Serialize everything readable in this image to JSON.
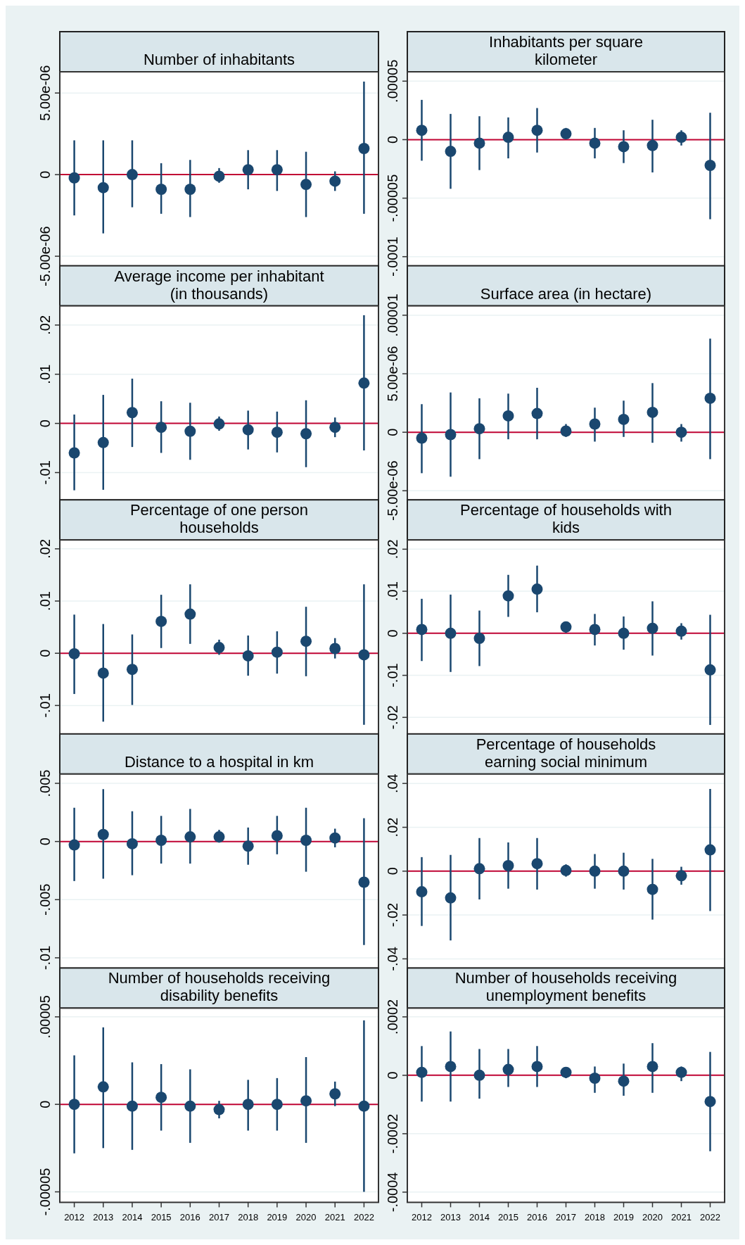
{
  "chart_data": [
    {
      "type": "scatter",
      "title": "Number of inhabitants",
      "categories": [
        null,
        null,
        null,
        null,
        null,
        null,
        null,
        null,
        null,
        null,
        null
      ],
      "values": [
        -2e-07,
        -8e-07,
        0,
        -9e-07,
        -9e-07,
        -1e-07,
        3e-07,
        3e-07,
        -6e-07,
        -4e-07,
        1.6e-06
      ],
      "errors": [
        [
          -2.5e-06,
          2.1e-06
        ],
        [
          -3.6e-06,
          2.1e-06
        ],
        [
          -2e-06,
          2.1e-06
        ],
        [
          -2.4e-06,
          7e-07
        ],
        [
          -2.6e-06,
          9e-07
        ],
        [
          -5e-07,
          4e-07
        ],
        [
          -9e-07,
          1.5e-06
        ],
        [
          -1e-06,
          1.5e-06
        ],
        [
          -2.6e-06,
          1.4e-06
        ],
        [
          -1e-06,
          2e-07
        ],
        [
          -2.4e-06,
          5.7e-06
        ]
      ],
      "color": "#1a476f",
      "marker": "circle",
      "grid": "y",
      "ylim": [
        -5.6e-06,
        6.3e-06
      ],
      "yticks": [
        {
          "value": -5e-06,
          "label": "-5.00e-06"
        },
        {
          "value": 0,
          "label": "0"
        },
        {
          "value": 5e-06,
          "label": "5.00e-06"
        }
      ],
      "ref_lines": [
        {
          "axis": "y",
          "value": 0,
          "color": "#c10534"
        }
      ],
      "tick_labels": "y"
    },
    {
      "type": "scatter",
      "title": "Inhabitants per square kilometer",
      "categories": [
        null,
        null,
        null,
        null,
        null,
        null,
        null,
        null,
        null,
        null,
        null
      ],
      "values": [
        8e-06,
        -1e-05,
        -3e-06,
        2e-06,
        8e-06,
        5e-06,
        -3e-06,
        -6e-06,
        -5e-06,
        2e-06,
        -2.2e-05
      ],
      "errors": [
        [
          -1.8e-05,
          3.4e-05
        ],
        [
          -4.2e-05,
          2.2e-05
        ],
        [
          -2.6e-05,
          2e-05
        ],
        [
          -1.6e-05,
          1.9e-05
        ],
        [
          -1.1e-05,
          2.7e-05
        ],
        [
          1e-06,
          1e-05
        ],
        [
          -1.6e-05,
          1e-05
        ],
        [
          -2e-05,
          8e-06
        ],
        [
          -2.8e-05,
          1.7e-05
        ],
        [
          -5e-06,
          8e-06
        ],
        [
          -6.8e-05,
          2.3e-05
        ]
      ],
      "color": "#1a476f",
      "marker": "circle",
      "grid": "y",
      "ylim": [
        -0.000108,
        5.8e-05
      ],
      "yticks": [
        {
          "value": -0.0001,
          "label": "-.0001"
        },
        {
          "value": -5e-05,
          "label": "-.00005"
        },
        {
          "value": 0,
          "label": "0"
        },
        {
          "value": 5e-05,
          "label": ".00005"
        }
      ],
      "ref_lines": [
        {
          "axis": "y",
          "value": 0,
          "color": "#c10534"
        }
      ],
      "tick_labels": "y"
    },
    {
      "type": "scatter",
      "title": "Average income per inhabitant (in thousands)",
      "categories": [
        null,
        null,
        null,
        null,
        null,
        null,
        null,
        null,
        null,
        null,
        null
      ],
      "values": [
        -0.006,
        -0.0039,
        0.0022,
        -0.0008,
        -0.0016,
        -0.0001,
        -0.0013,
        -0.0018,
        -0.0021,
        -0.0008,
        0.0082
      ],
      "errors": [
        [
          -0.0136,
          0.0018
        ],
        [
          -0.0135,
          0.0058
        ],
        [
          -0.0048,
          0.0091
        ],
        [
          -0.006,
          0.0045
        ],
        [
          -0.0074,
          0.0042
        ],
        [
          -0.0015,
          0.0014
        ],
        [
          -0.0053,
          0.0026
        ],
        [
          -0.0059,
          0.0024
        ],
        [
          -0.0089,
          0.0047
        ],
        [
          -0.0028,
          0.0012
        ],
        [
          -0.0055,
          0.022
        ]
      ],
      "color": "#1a476f",
      "marker": "circle",
      "grid": "y",
      "ylim": [
        -0.0156,
        0.0239
      ],
      "yticks": [
        {
          "value": -0.01,
          "label": "-.01"
        },
        {
          "value": 0,
          "label": "0"
        },
        {
          "value": 0.01,
          "label": ".01"
        },
        {
          "value": 0.02,
          "label": ".02"
        }
      ],
      "ref_lines": [
        {
          "axis": "y",
          "value": 0,
          "color": "#c10534"
        }
      ],
      "tick_labels": "y"
    },
    {
      "type": "scatter",
      "title": "Surface area (in hectare)",
      "categories": [
        null,
        null,
        null,
        null,
        null,
        null,
        null,
        null,
        null,
        null,
        null
      ],
      "values": [
        -5e-07,
        -2e-07,
        3e-07,
        1.4e-06,
        1.6e-06,
        1e-07,
        7e-07,
        1.1e-06,
        1.7e-06,
        0,
        2.9e-06
      ],
      "errors": [
        [
          -3.5e-06,
          2.4e-06
        ],
        [
          -3.8e-06,
          3.4e-06
        ],
        [
          -2.3e-06,
          2.9e-06
        ],
        [
          -6e-07,
          3.3e-06
        ],
        [
          -6e-07,
          3.8e-06
        ],
        [
          -4e-07,
          7e-07
        ],
        [
          -8e-07,
          2.1e-06
        ],
        [
          -4e-07,
          2.7e-06
        ],
        [
          -9e-07,
          4.2e-06
        ],
        [
          -8e-07,
          7e-07
        ],
        [
          -2.3e-06,
          8e-06
        ]
      ],
      "color": "#1a476f",
      "marker": "circle",
      "grid": "y",
      "ylim": [
        -5.8e-06,
        1.08e-05
      ],
      "yticks": [
        {
          "value": -5e-06,
          "label": "-5.00e-06"
        },
        {
          "value": 0,
          "label": "0"
        },
        {
          "value": 5e-06,
          "label": "5.00e-06"
        },
        {
          "value": 1e-05,
          "label": ".00001"
        }
      ],
      "ref_lines": [
        {
          "axis": "y",
          "value": 0,
          "color": "#c10534"
        }
      ],
      "tick_labels": "y"
    },
    {
      "type": "scatter",
      "title": "Percentage of one person households",
      "categories": [
        null,
        null,
        null,
        null,
        null,
        null,
        null,
        null,
        null,
        null,
        null
      ],
      "values": [
        -0.0001,
        -0.0038,
        -0.0031,
        0.0061,
        0.0075,
        0.0011,
        -0.0005,
        0.0002,
        0.0023,
        0.0009,
        -0.0003
      ],
      "errors": [
        [
          -0.0078,
          0.0074
        ],
        [
          -0.0131,
          0.0056
        ],
        [
          -0.0099,
          0.0036
        ],
        [
          0.001,
          0.0112
        ],
        [
          0.0018,
          0.0132
        ],
        [
          -0.0003,
          0.0026
        ],
        [
          -0.0043,
          0.0034
        ],
        [
          -0.0039,
          0.0042
        ],
        [
          -0.0044,
          0.0089
        ],
        [
          -0.001,
          0.0029
        ],
        [
          -0.0137,
          0.0132
        ]
      ],
      "color": "#1a476f",
      "marker": "circle",
      "grid": "y",
      "ylim": [
        -0.0155,
        0.0217
      ],
      "yticks": [
        {
          "value": -0.01,
          "label": "-.01"
        },
        {
          "value": 0,
          "label": "0"
        },
        {
          "value": 0.01,
          "label": ".01"
        },
        {
          "value": 0.02,
          "label": ".02"
        }
      ],
      "ref_lines": [
        {
          "axis": "y",
          "value": 0,
          "color": "#c10534"
        }
      ],
      "tick_labels": "y"
    },
    {
      "type": "scatter",
      "title": "Percentage of households with kids",
      "categories": [
        null,
        null,
        null,
        null,
        null,
        null,
        null,
        null,
        null,
        null,
        null
      ],
      "values": [
        0.0009,
        0,
        -0.0012,
        0.0089,
        0.0105,
        0.0015,
        0.0009,
        0,
        0.0012,
        0.0005,
        -0.0087
      ],
      "errors": [
        [
          -0.0066,
          0.0082
        ],
        [
          -0.0092,
          0.0092
        ],
        [
          -0.0078,
          0.0054
        ],
        [
          0.0039,
          0.0139
        ],
        [
          0.005,
          0.0161
        ],
        [
          0.0001,
          0.0028
        ],
        [
          -0.0029,
          0.0046
        ],
        [
          -0.0039,
          0.004
        ],
        [
          -0.0053,
          0.0076
        ],
        [
          -0.0015,
          0.0024
        ],
        [
          -0.0218,
          0.0044
        ]
      ],
      "color": "#1a476f",
      "marker": "circle",
      "grid": "y",
      "ylim": [
        -0.024,
        0.0222
      ],
      "yticks": [
        {
          "value": -0.02,
          "label": "-.02"
        },
        {
          "value": -0.01,
          "label": "-.01"
        },
        {
          "value": 0,
          "label": "0"
        },
        {
          "value": 0.01,
          "label": ".01"
        },
        {
          "value": 0.02,
          "label": ".02"
        }
      ],
      "ref_lines": [
        {
          "axis": "y",
          "value": 0,
          "color": "#c10534"
        }
      ],
      "tick_labels": "y"
    },
    {
      "type": "scatter",
      "title": "Distance to a hospital in km",
      "categories": [
        null,
        null,
        null,
        null,
        null,
        null,
        null,
        null,
        null,
        null,
        null
      ],
      "values": [
        -0.0003,
        0.0006,
        -0.0002,
        0.0001,
        0.0004,
        0.0004,
        -0.0004,
        0.0005,
        0.0001,
        0.0003,
        -0.0035
      ],
      "errors": [
        [
          -0.0034,
          0.0029
        ],
        [
          -0.0032,
          0.0045
        ],
        [
          -0.0029,
          0.0026
        ],
        [
          -0.0019,
          0.0022
        ],
        [
          -0.0019,
          0.0028
        ],
        [
          -0.0001,
          0.001
        ],
        [
          -0.002,
          0.0012
        ],
        [
          -0.0011,
          0.0022
        ],
        [
          -0.0026,
          0.0029
        ],
        [
          -0.0005,
          0.0011
        ],
        [
          -0.0089,
          0.002
        ]
      ],
      "color": "#1a476f",
      "marker": "circle",
      "grid": "y",
      "ylim": [
        -0.0109,
        0.0058
      ],
      "yticks": [
        {
          "value": -0.01,
          "label": "-.01"
        },
        {
          "value": -0.005,
          "label": "-.005"
        },
        {
          "value": 0,
          "label": "0"
        },
        {
          "value": 0.005,
          "label": ".005"
        }
      ],
      "ref_lines": [
        {
          "axis": "y",
          "value": 0,
          "color": "#c10534"
        }
      ],
      "tick_labels": "y"
    },
    {
      "type": "scatter",
      "title": "Percentage of households earning social minimum",
      "categories": [
        null,
        null,
        null,
        null,
        null,
        null,
        null,
        null,
        null,
        null,
        null
      ],
      "values": [
        -0.0094,
        -0.0122,
        0.0011,
        0.0025,
        0.0034,
        0.0003,
        0,
        0,
        -0.0083,
        -0.0021,
        0.0097
      ],
      "errors": [
        [
          -0.025,
          0.0064
        ],
        [
          -0.0316,
          0.0074
        ],
        [
          -0.0129,
          0.0151
        ],
        [
          -0.008,
          0.0131
        ],
        [
          -0.0084,
          0.0151
        ],
        [
          -0.0025,
          0.0031
        ],
        [
          -0.008,
          0.0078
        ],
        [
          -0.0084,
          0.0084
        ],
        [
          -0.0221,
          0.0056
        ],
        [
          -0.0062,
          0.002
        ],
        [
          -0.0182,
          0.0375
        ]
      ],
      "color": "#1a476f",
      "marker": "circle",
      "grid": "y",
      "ylim": [
        -0.0443,
        0.0443
      ],
      "yticks": [
        {
          "value": -0.04,
          "label": "-.04"
        },
        {
          "value": -0.02,
          "label": "-.02"
        },
        {
          "value": 0,
          "label": "0"
        },
        {
          "value": 0.02,
          "label": ".02"
        },
        {
          "value": 0.04,
          "label": ".04"
        }
      ],
      "ref_lines": [
        {
          "axis": "y",
          "value": 0,
          "color": "#c10534"
        }
      ],
      "tick_labels": "y"
    },
    {
      "type": "scatter",
      "title": "Number of households receiving disability benefits",
      "categories": [
        "2012",
        "2013",
        "2014",
        "2015",
        "2016",
        "2017",
        "2018",
        "2019",
        "2020",
        "2021",
        "2022"
      ],
      "values": [
        0,
        1e-05,
        -1e-06,
        4e-06,
        -1e-06,
        -3e-06,
        0,
        0,
        2e-06,
        6e-06,
        -1e-06
      ],
      "errors": [
        [
          -2.8e-05,
          2.8e-05
        ],
        [
          -2.5e-05,
          4.4e-05
        ],
        [
          -2.6e-05,
          2.4e-05
        ],
        [
          -1.5e-05,
          2.3e-05
        ],
        [
          -2.2e-05,
          2e-05
        ],
        [
          -8e-06,
          2e-06
        ],
        [
          -1.5e-05,
          1.4e-05
        ],
        [
          -1.5e-05,
          1.5e-05
        ],
        [
          -2.2e-05,
          2.7e-05
        ],
        [
          -1e-06,
          1.3e-05
        ],
        [
          -5e-05,
          4.8e-05
        ]
      ],
      "color": "#1a476f",
      "marker": "circle",
      "grid": "y",
      "ylim": [
        -5.6e-05,
        5.5e-05
      ],
      "yticks": [
        {
          "value": -5e-05,
          "label": "-.00005"
        },
        {
          "value": 0,
          "label": "0"
        },
        {
          "value": 5e-05,
          "label": ".00005"
        }
      ],
      "ref_lines": [
        {
          "axis": "y",
          "value": 0,
          "color": "#c10534"
        }
      ]
    },
    {
      "type": "scatter",
      "title": "Number of households receiving unemployment benefits",
      "categories": [
        "2012",
        "2013",
        "2014",
        "2015",
        "2016",
        "2017",
        "2018",
        "2019",
        "2020",
        "2021",
        "2022"
      ],
      "values": [
        1e-05,
        3e-05,
        0,
        2e-05,
        3e-05,
        1e-05,
        -1e-05,
        -2e-05,
        3e-05,
        1e-05,
        -9e-05
      ],
      "errors": [
        [
          -9e-05,
          0.0001
        ],
        [
          -9e-05,
          0.00015
        ],
        [
          -8e-05,
          9e-05
        ],
        [
          -4e-05,
          9e-05
        ],
        [
          -4e-05,
          0.0001
        ],
        [
          -1e-05,
          2e-05
        ],
        [
          -6e-05,
          3e-05
        ],
        [
          -7e-05,
          4e-05
        ],
        [
          -6e-05,
          0.00011
        ],
        [
          -2e-05,
          3e-05
        ],
        [
          -0.00026,
          8e-05
        ]
      ],
      "color": "#1a476f",
      "marker": "circle",
      "grid": "y",
      "ylim": [
        -0.000435,
        0.00023
      ],
      "yticks": [
        {
          "value": -0.0004,
          "label": "-.0004"
        },
        {
          "value": -0.0002,
          "label": "-.0002"
        },
        {
          "value": 0,
          "label": "0"
        },
        {
          "value": 0.0002,
          "label": ".0002"
        }
      ],
      "ref_lines": [
        {
          "axis": "y",
          "value": 0,
          "color": "#c10534"
        }
      ]
    }
  ]
}
